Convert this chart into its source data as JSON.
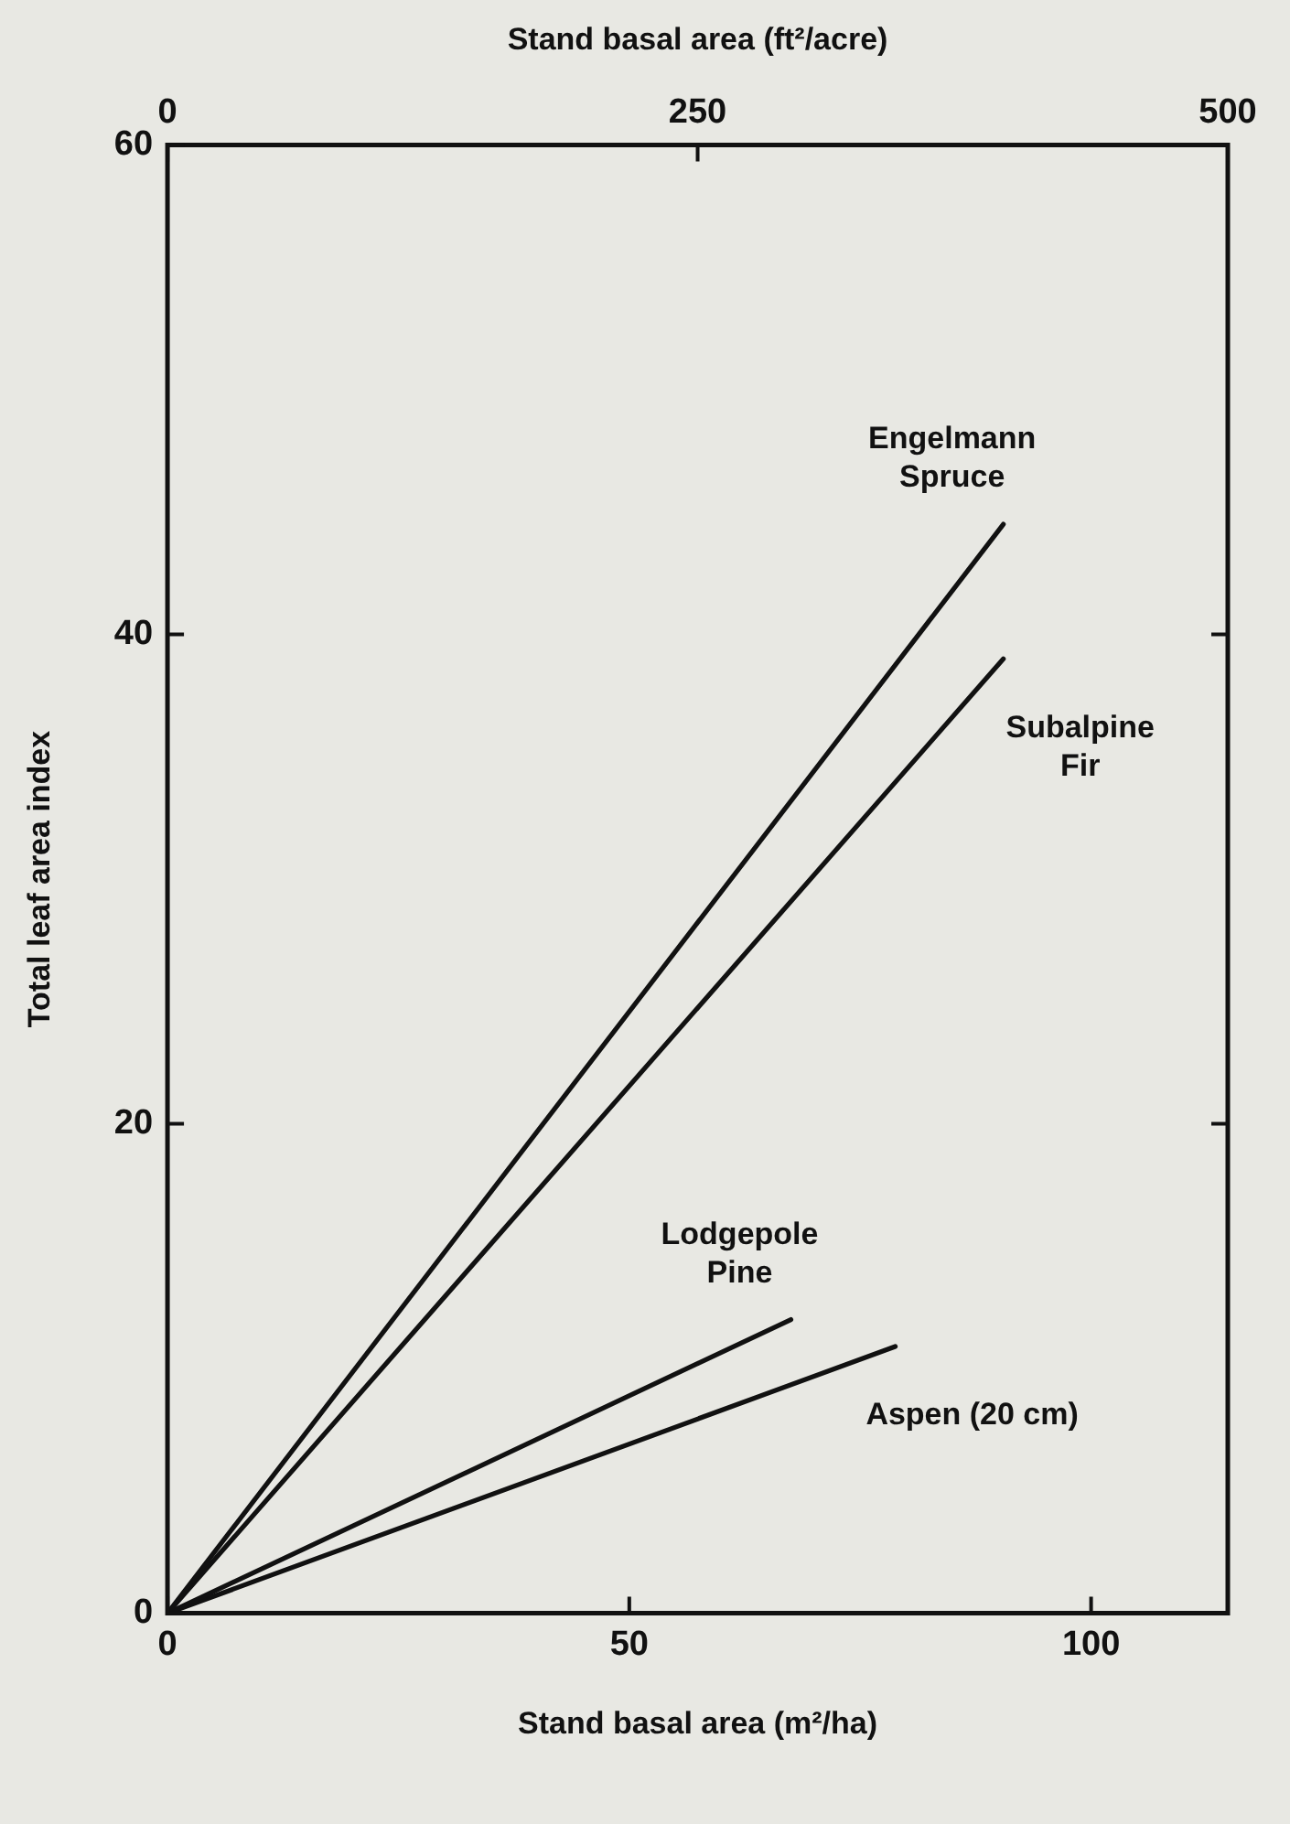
{
  "chart_data": {
    "type": "line",
    "xlabel": "Stand basal area (m²/ha)",
    "x2label": "Stand basal area (ft²/acre)",
    "ylabel": "Total leaf area index",
    "xlim": [
      0,
      114.8
    ],
    "xticks": [
      0,
      50,
      100
    ],
    "x2lim": [
      0,
      500
    ],
    "x2ticks": [
      0,
      250,
      500
    ],
    "ylim": [
      0,
      60
    ],
    "yticks": [
      0,
      20,
      40,
      60
    ],
    "series": [
      {
        "name": "Engelmann\nSpruce",
        "color": "#111111",
        "x": [
          0,
          90.5
        ],
        "values": [
          0,
          44.5
        ]
      },
      {
        "name": "Subalpine\nFir",
        "color": "#111111",
        "x": [
          0,
          90.5
        ],
        "values": [
          0,
          39
        ]
      },
      {
        "name": "Lodgepole\nPine",
        "color": "#111111",
        "x": [
          0,
          67.5
        ],
        "values": [
          0,
          12
        ]
      },
      {
        "name": "Aspen (20 cm)",
        "color": "#111111",
        "x": [
          0,
          78.8
        ],
        "values": [
          0,
          10.9
        ]
      }
    ],
    "grid": false,
    "legend": false,
    "marker": "none",
    "line_style": "solid"
  }
}
